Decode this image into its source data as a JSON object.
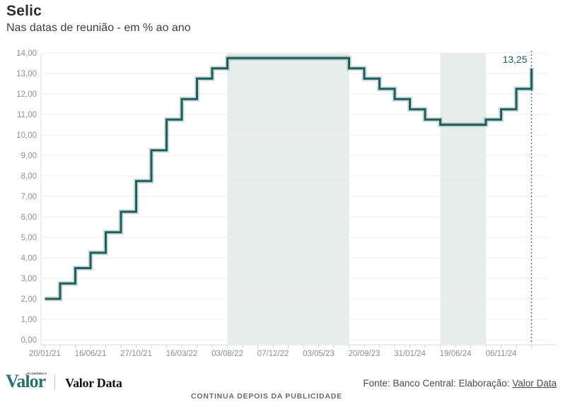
{
  "header": {
    "title": "Selic",
    "subtitle": "Nas datas de reunião - em % ao ano"
  },
  "chart_data": {
    "type": "line",
    "subtype": "step-after",
    "title": "Selic",
    "subtitle": "Nas datas de reunião - em % ao ano",
    "unit": "% ao ano",
    "values": [
      2.0,
      2.75,
      3.5,
      4.25,
      5.25,
      6.25,
      7.75,
      9.25,
      10.75,
      11.75,
      12.75,
      13.25,
      13.75,
      13.75,
      13.75,
      13.75,
      13.75,
      13.75,
      13.75,
      13.75,
      13.25,
      12.75,
      12.25,
      11.75,
      11.25,
      10.75,
      10.5,
      10.5,
      10.5,
      10.75,
      11.25,
      12.25,
      13.25
    ],
    "x_tick_indices": [
      0,
      3,
      6,
      9,
      12,
      15,
      18,
      21,
      24,
      27,
      30
    ],
    "x_tick_labels": [
      "20/01/21",
      "16/06/21",
      "27/10/21",
      "16/03/22",
      "03/08/22",
      "07/12/22",
      "03/05/23",
      "20/09/23",
      "31/01/24",
      "19/06/24",
      "06/11/24"
    ],
    "y_ticks": [
      "14,00",
      "13,00",
      "12,00",
      "11,00",
      "10,00",
      "9,00",
      "8,00",
      "7,00",
      "6,00",
      "5,00",
      "4,00",
      "3,00",
      "2,00",
      "1,00",
      "0,00"
    ],
    "ylim": [
      0,
      14
    ],
    "grid": "horizontal",
    "legend": "none",
    "highlight_bands": [
      {
        "from_index": 12,
        "to_index": 20
      },
      {
        "from_index": 26,
        "to_index": 29
      }
    ],
    "last_value_label": "13,25",
    "end_marker": "dotted-vertical-line",
    "colors": {
      "line": "#1e5d5d",
      "line_halo": "rgba(30,93,93,0.22)",
      "band": "#e6edeb",
      "grid": "#ededed",
      "axis": "#d9d9d9",
      "tick": "#d4d4d4",
      "axis_label": "#8f8f8f",
      "dotted_line": "#3d7a7a",
      "annotation": "#1e5d5d"
    }
  },
  "footer": {
    "logo": {
      "valor": "Valor",
      "economico": "ECONÔMICO",
      "brand_data": "Valor Data"
    },
    "source_text": "Fonte: Banco Central: Elaboração: ",
    "source_link": "Valor Data",
    "ad_notice": "CONTINUA DEPOIS DA PUBLICIDADE"
  }
}
